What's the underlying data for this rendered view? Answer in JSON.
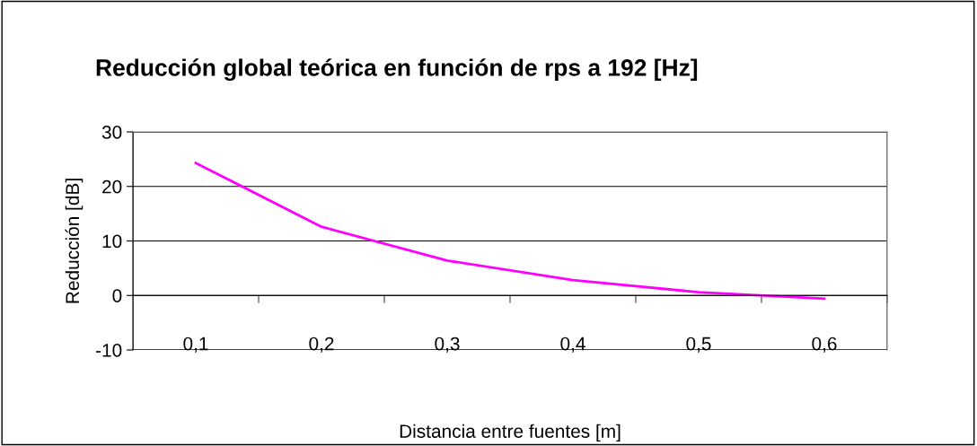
{
  "chart_data": {
    "type": "line",
    "title": "Reducción global teórica en función de rps a 192 [Hz]",
    "xlabel": "Distancia entre fuentes [m]",
    "ylabel": "Reducción [dB]",
    "categories": [
      "0,1",
      "0,2",
      "0,3",
      "0,4",
      "0,5",
      "0,6"
    ],
    "series": [
      {
        "color": "#ff00ff",
        "values": [
          24.3,
          12.6,
          6.4,
          2.8,
          0.6,
          -0.6
        ]
      }
    ],
    "ylim": [
      -10,
      30
    ],
    "yticks": [
      -10,
      0,
      10,
      20,
      30
    ],
    "grid": "y",
    "legend": false,
    "marker": "none",
    "line_style": "solid"
  }
}
